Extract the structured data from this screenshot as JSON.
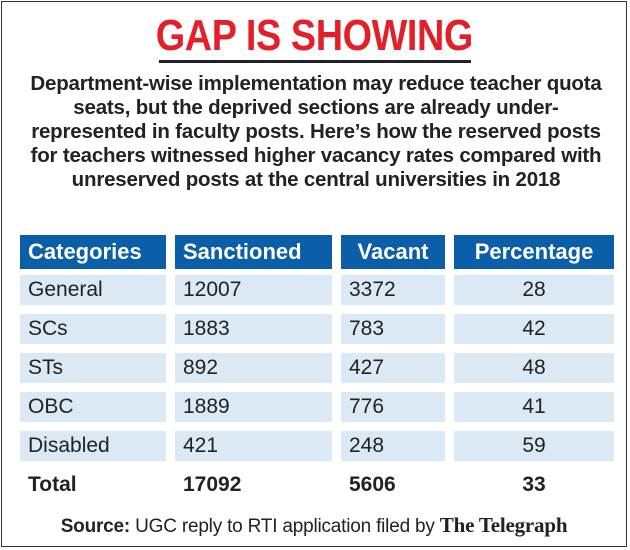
{
  "title": "GAP IS SHOWING",
  "intro": "Department-wise implementation may reduce teacher quota seats, but the deprived sections are already under-represented in faculty posts. Here’s how the reserved posts for teachers witnessed higher vacancy rates compared with unreserved posts at the central universities in 2018",
  "colors": {
    "title": "#e3202a",
    "header_bg": "#0b5ea8",
    "row_bg": "#dbe9f5"
  },
  "chart_data": {
    "type": "table",
    "columns": [
      "Categories",
      "Sanctioned",
      "Vacant",
      "Percentage"
    ],
    "rows": [
      {
        "category": "General",
        "sanctioned": "12007",
        "vacant": "3372",
        "percentage": "28"
      },
      {
        "category": "SCs",
        "sanctioned": "1883",
        "vacant": "783",
        "percentage": "42"
      },
      {
        "category": "STs",
        "sanctioned": "892",
        "vacant": "427",
        "percentage": "48"
      },
      {
        "category": "OBC",
        "sanctioned": "1889",
        "vacant": "776",
        "percentage": "41"
      },
      {
        "category": "Disabled",
        "sanctioned": "421",
        "vacant": "248",
        "percentage": "59"
      }
    ],
    "total": {
      "category": "Total",
      "sanctioned": "17092",
      "vacant": "5606",
      "percentage": "33"
    }
  },
  "source": {
    "label": "Source:",
    "text": "UGC reply to RTI application filed by",
    "brand": "The Telegraph"
  }
}
